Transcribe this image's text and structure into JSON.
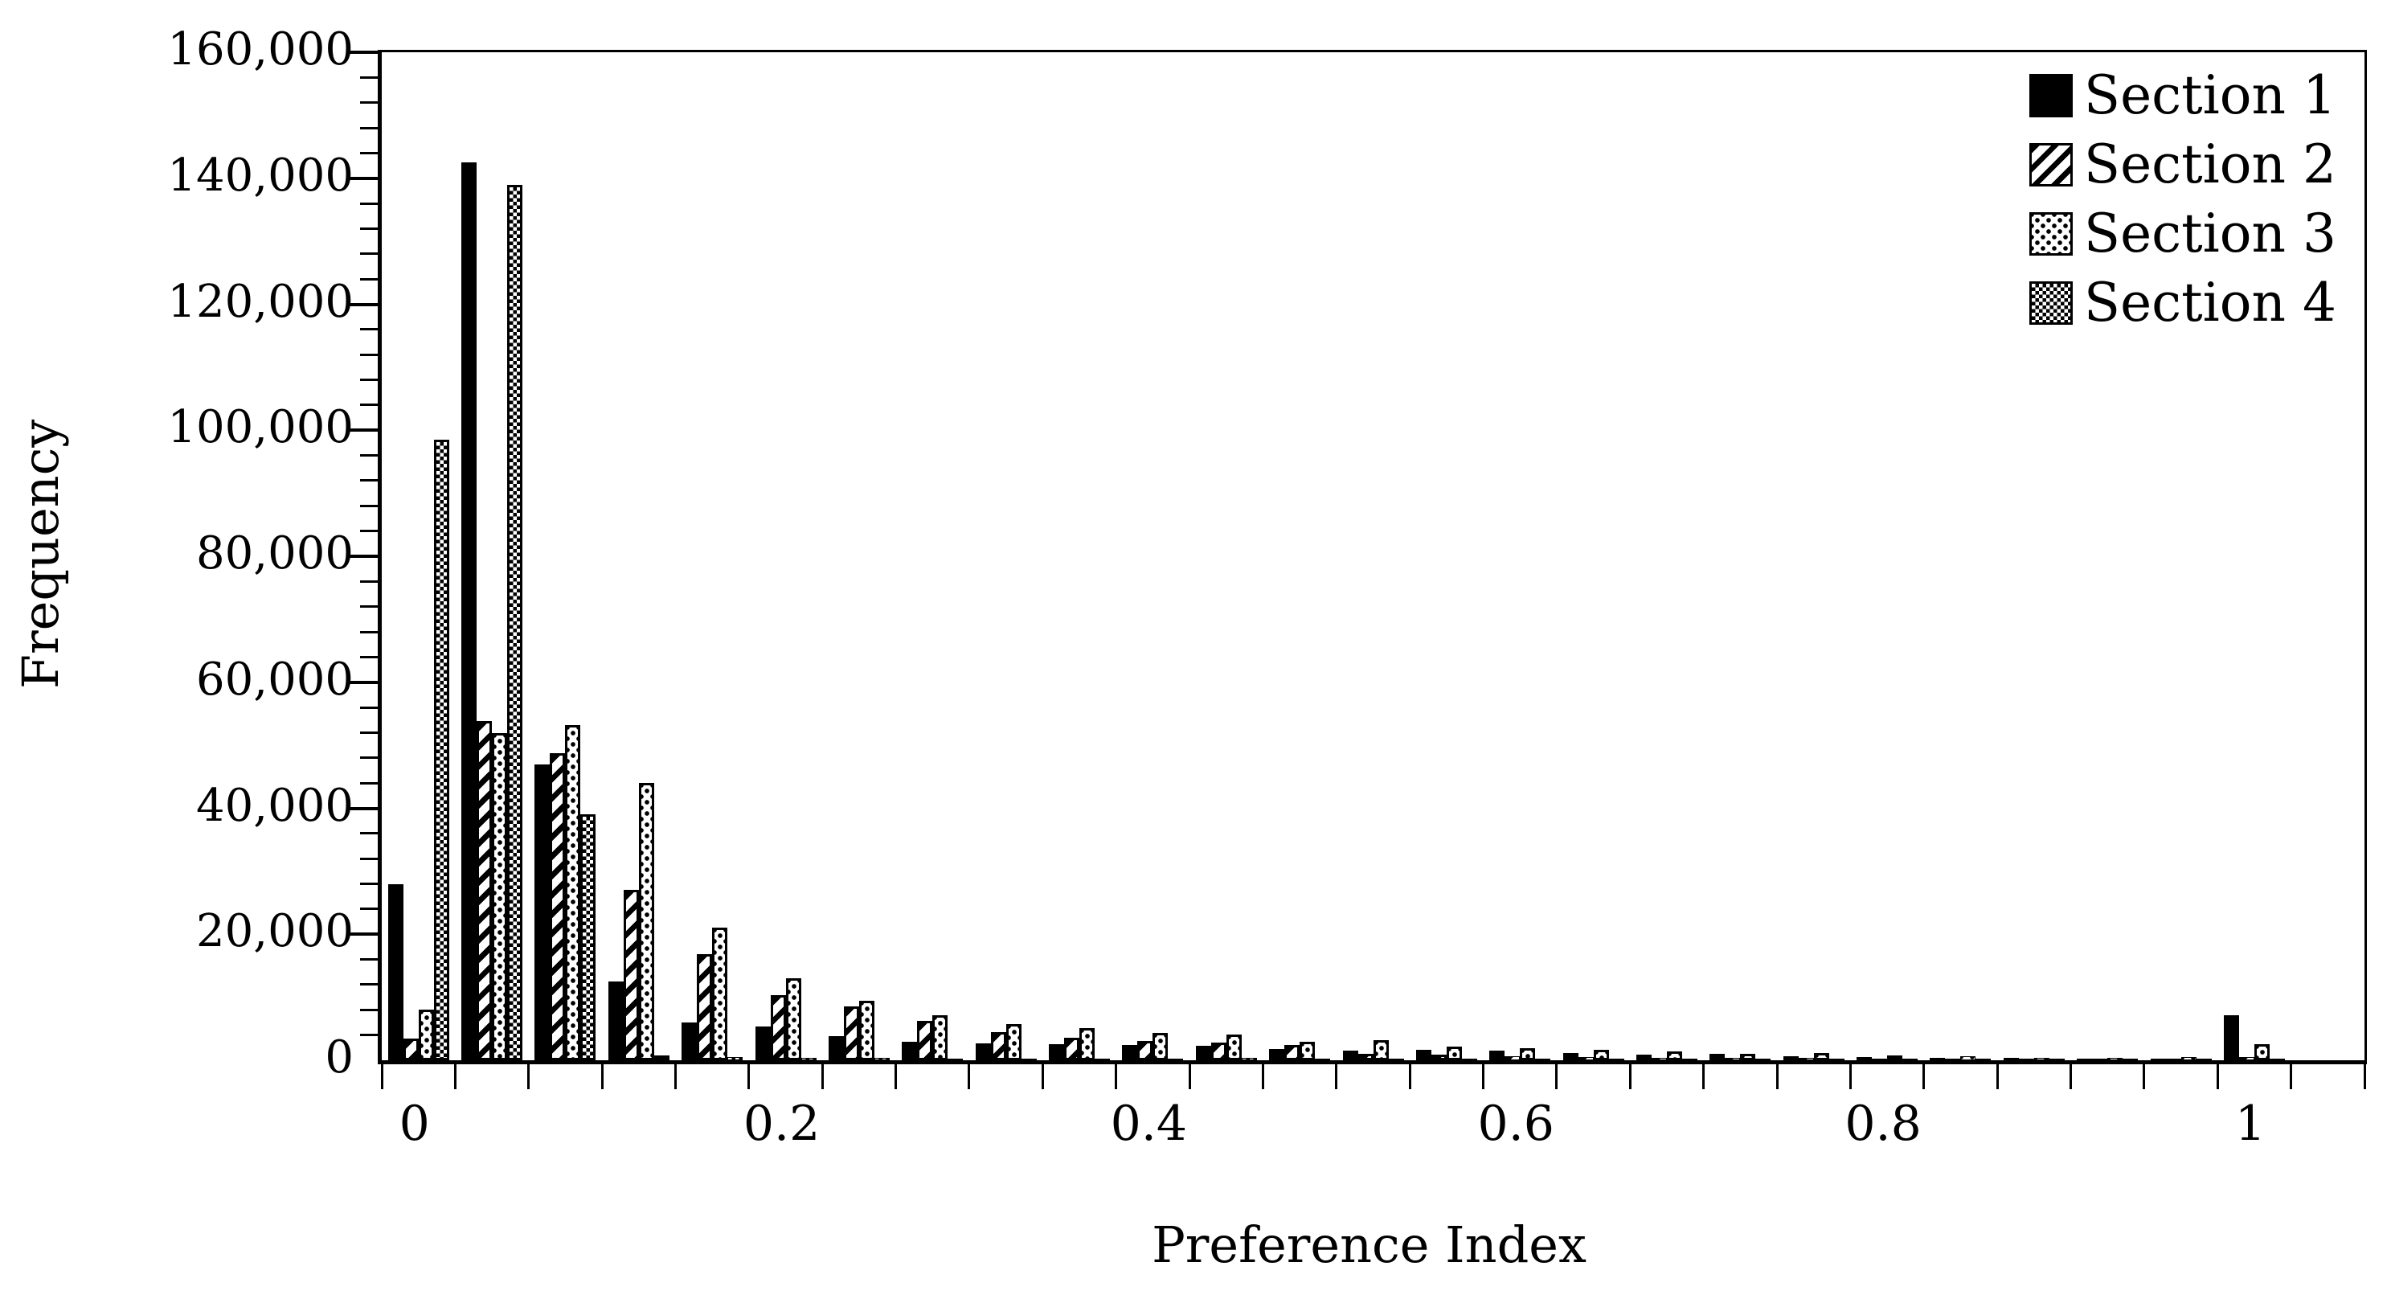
{
  "chart_data": {
    "type": "bar",
    "title": "",
    "xlabel": "Preference Index",
    "ylabel": "Frequency",
    "ylim": [
      0,
      160000
    ],
    "y_major_step": 20000,
    "y_minor_step": 4000,
    "y_tick_labels": [
      "0",
      "20,000",
      "40,000",
      "60,000",
      "80,000",
      "100,000",
      "120,000",
      "140,000",
      "160,000"
    ],
    "x_tick_labels": [
      "0",
      "0.2",
      "0.4",
      "0.6",
      "0.8",
      "1"
    ],
    "x_tick_label_bins": [
      0,
      5,
      10,
      15,
      20,
      25
    ],
    "bin_width": 0.04,
    "grid": false,
    "legend_position": "top-right",
    "colors": {
      "foreground": "#000000",
      "background": "#ffffff"
    },
    "categories": [
      0.0,
      0.04,
      0.08,
      0.12,
      0.16,
      0.2,
      0.24,
      0.28,
      0.32,
      0.36,
      0.4,
      0.44,
      0.48,
      0.52,
      0.56,
      0.6,
      0.64,
      0.68,
      0.72,
      0.76,
      0.8,
      0.84,
      0.88,
      0.92,
      0.96,
      1.0
    ],
    "series": [
      {
        "name": "Section 1",
        "pattern": "solid-black",
        "values": [
          28000,
          142500,
          47000,
          12500,
          6000,
          5300,
          3800,
          2900,
          2700,
          2500,
          2400,
          2300,
          1800,
          1500,
          1600,
          1500,
          1100,
          900,
          1000,
          700,
          500,
          400,
          400,
          300,
          300,
          7200
        ]
      },
      {
        "name": "Section 2",
        "pattern": "diagonal-stripes",
        "values": [
          3500,
          53800,
          48800,
          27000,
          16800,
          10400,
          8600,
          6200,
          4500,
          3600,
          3100,
          2800,
          2400,
          1000,
          900,
          600,
          500,
          400,
          400,
          350,
          300,
          250,
          200,
          150,
          150,
          500
        ]
      },
      {
        "name": "Section 3",
        "pattern": "sparse-dots",
        "values": [
          8000,
          51900,
          53200,
          44000,
          21000,
          13000,
          9500,
          7200,
          5700,
          5100,
          4300,
          4100,
          3000,
          3200,
          2200,
          1900,
          1600,
          1400,
          1000,
          1200,
          800,
          700,
          400,
          400,
          500,
          2500
        ]
      },
      {
        "name": "Section 4",
        "pattern": "fine-checker",
        "values": [
          98500,
          139000,
          39000,
          800,
          500,
          400,
          400,
          300,
          300,
          250,
          250,
          400,
          300,
          250,
          200,
          150,
          150,
          100,
          100,
          100,
          100,
          50,
          50,
          50,
          50,
          200
        ]
      }
    ]
  }
}
